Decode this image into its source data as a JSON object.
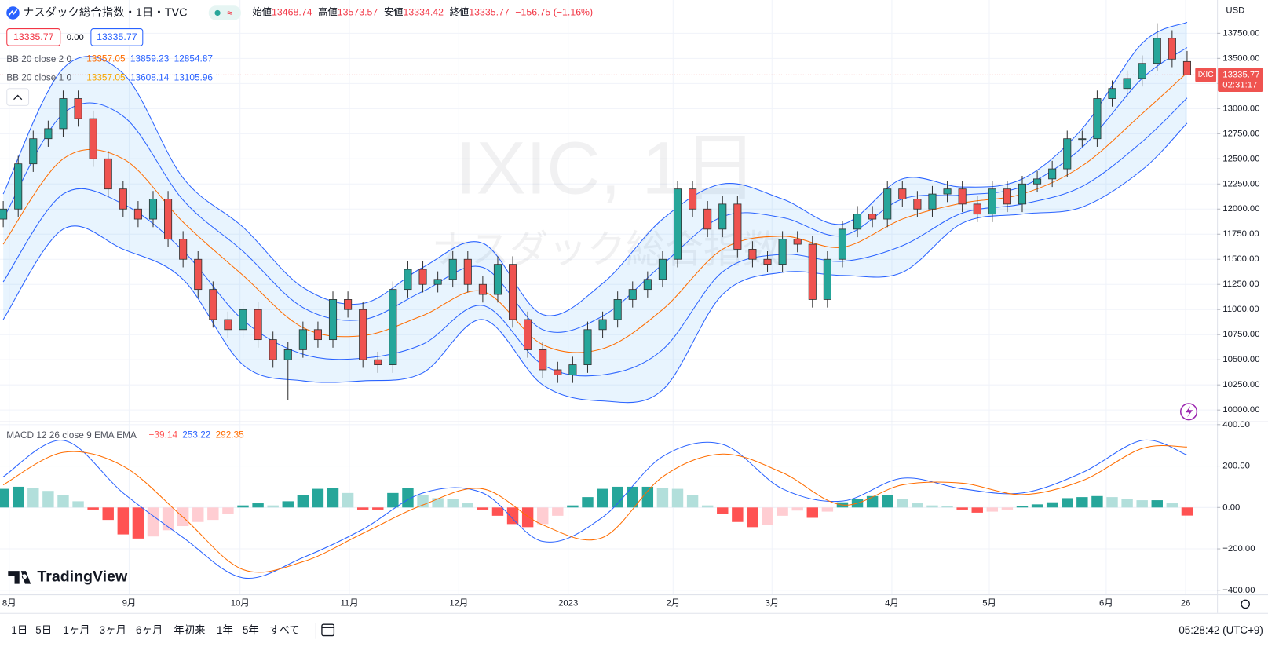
{
  "header": {
    "symbol": "ナスダック総合指数・1日・TVC",
    "badge": "≈",
    "ohlc": [
      {
        "label": "始値",
        "value": "13468.74"
      },
      {
        "label": "高値",
        "value": "13573.57"
      },
      {
        "label": "安値",
        "value": "13334.42"
      },
      {
        "label": "終値",
        "value": "13335.77"
      }
    ],
    "change": "−156.75 (−1.16%)",
    "quote_boxes": [
      "13335.77",
      "0.00",
      "13335.77"
    ]
  },
  "watermark": {
    "title": "IXIC, 1日",
    "subtitle": "ナスダック総合指数"
  },
  "logo": "TradingView",
  "currency": "USD",
  "toolbar": {
    "ranges": [
      "1日",
      "5日",
      "1ヶ月",
      "3ヶ月",
      "6ヶ月",
      "年初来",
      "1年",
      "5年",
      "すべて"
    ],
    "clock": "05:28:42 (UTC+9)"
  },
  "chart_data": [
    {
      "type": "candlestick",
      "x": [
        0,
        1,
        2,
        3,
        4,
        5,
        6,
        7,
        8,
        9,
        10,
        11,
        12,
        13,
        14,
        15,
        16,
        17,
        18,
        19,
        20,
        21,
        22,
        23,
        24,
        25,
        26,
        27,
        28,
        29,
        30,
        31,
        32,
        33,
        34,
        35,
        36,
        37,
        38,
        39,
        40,
        41,
        42,
        43,
        44,
        45,
        46,
        47,
        48,
        49,
        50,
        51,
        52,
        53,
        54,
        55,
        56,
        57,
        58,
        59,
        60,
        61,
        62,
        63,
        64,
        65,
        66,
        67,
        68,
        69,
        70,
        71,
        72,
        73,
        74,
        75,
        76,
        77,
        78,
        79
      ],
      "open": [
        11900,
        12000,
        12450,
        12700,
        12800,
        13100,
        12900,
        12500,
        12200,
        12000,
        11900,
        12100,
        11700,
        11500,
        11200,
        10900,
        10800,
        11000,
        10700,
        10500,
        10600,
        10800,
        10700,
        11100,
        11000,
        10500,
        10450,
        11200,
        11400,
        11250,
        11300,
        11500,
        11250,
        11150,
        11450,
        10900,
        10600,
        10400,
        10350,
        10450,
        10800,
        10900,
        11100,
        11200,
        11300,
        11500,
        12200,
        12000,
        11800,
        12050,
        11600,
        11500,
        11450,
        11700,
        11650,
        11100,
        11500,
        11800,
        11950,
        11900,
        12200,
        12100,
        12000,
        12150,
        12200,
        12050,
        11950,
        12200,
        12050,
        12250,
        12300,
        12400,
        12700,
        12700,
        13100,
        13200,
        13300,
        13450,
        13700,
        13468.74
      ],
      "high": [
        12080,
        12530,
        12780,
        12880,
        13180,
        13180,
        12980,
        12580,
        12280,
        12080,
        12180,
        12180,
        11780,
        11580,
        11280,
        10980,
        11080,
        11080,
        10780,
        10680,
        10880,
        10880,
        11180,
        11180,
        11080,
        10580,
        11280,
        11480,
        11480,
        11380,
        11580,
        11580,
        11330,
        11530,
        11530,
        10980,
        10680,
        10480,
        10530,
        10880,
        10980,
        11180,
        11280,
        11380,
        11580,
        12280,
        12280,
        12080,
        12130,
        12130,
        11680,
        11580,
        11780,
        11780,
        11730,
        11580,
        11880,
        12030,
        12030,
        12280,
        12280,
        12180,
        12230,
        12280,
        12280,
        12130,
        12280,
        12280,
        12330,
        12380,
        12480,
        12780,
        12780,
        13180,
        13280,
        13380,
        13530,
        13850,
        13780,
        13573.57
      ],
      "low": [
        11820,
        11920,
        12370,
        12620,
        12720,
        12820,
        12420,
        12120,
        11920,
        11820,
        11820,
        11620,
        11420,
        11120,
        10820,
        10720,
        10720,
        10620,
        10420,
        10100,
        10520,
        10620,
        10620,
        10920,
        10420,
        10370,
        10370,
        11120,
        11170,
        11170,
        11220,
        11170,
        11070,
        11070,
        10820,
        10520,
        10320,
        10270,
        10270,
        10370,
        10720,
        10820,
        11020,
        11120,
        11220,
        11420,
        11920,
        11720,
        11720,
        11520,
        11420,
        11370,
        11370,
        11570,
        11020,
        11020,
        11420,
        11720,
        11820,
        11820,
        12020,
        11920,
        11920,
        12070,
        11970,
        11870,
        11870,
        11970,
        11970,
        12170,
        12220,
        12320,
        12620,
        12620,
        13020,
        13120,
        13220,
        13370,
        13412.52,
        13334.42
      ],
      "close": [
        12000,
        12450,
        12700,
        12800,
        13100,
        12900,
        12500,
        12200,
        12000,
        11900,
        12100,
        11700,
        11500,
        11200,
        10900,
        10800,
        11000,
        10700,
        10500,
        10600,
        10800,
        10700,
        11100,
        11000,
        10500,
        10450,
        11200,
        11400,
        11250,
        11300,
        11500,
        11250,
        11150,
        11450,
        10900,
        10600,
        10400,
        10350,
        10450,
        10800,
        10900,
        11100,
        11200,
        11300,
        11500,
        12200,
        12000,
        11800,
        12050,
        11600,
        11500,
        11450,
        11700,
        11650,
        11100,
        11500,
        11800,
        11950,
        11900,
        12200,
        12100,
        12000,
        12150,
        12200,
        12050,
        11950,
        12200,
        12050,
        12250,
        12300,
        12400,
        12700,
        12700,
        13100,
        13200,
        13300,
        13450,
        13700,
        13492.52,
        13335.77
      ],
      "band_x": [
        0,
        4,
        8,
        12,
        16,
        20,
        24,
        28,
        32,
        36,
        40,
        44,
        48,
        52,
        56,
        60,
        64,
        68,
        72,
        76,
        79
      ],
      "indicators": [
        {
          "label": "BB 20 close 2 0",
          "basis_color": "#ff6d00",
          "basis": [
            11650,
            12500,
            12500,
            11870,
            11340,
            10820,
            10740,
            10940,
            11180,
            10650,
            10610,
            11000,
            11600,
            11730,
            11620,
            11900,
            12060,
            12150,
            12430,
            12950,
            13357.05
          ],
          "upper": [
            12150,
            13400,
            13350,
            12310,
            11820,
            11220,
            11060,
            11420,
            11660,
            10950,
            11260,
            11900,
            12250,
            12100,
            11850,
            12300,
            12220,
            12300,
            12800,
            13650,
            13859.23
          ],
          "lower": [
            10900,
            11800,
            11600,
            11300,
            10450,
            10290,
            10290,
            10370,
            10900,
            10250,
            10090,
            10200,
            11150,
            11370,
            11340,
            11370,
            11860,
            11950,
            12020,
            12390,
            12854.87
          ],
          "last": [
            13357.05,
            13859.23,
            12854.87
          ]
        },
        {
          "label": "BB 20 close 1 0",
          "basis_color": "#f7a600",
          "upper": [
            11900,
            12950,
            12925,
            12090,
            11580,
            11020,
            10900,
            11180,
            11420,
            10800,
            10935,
            11450,
            11925,
            11915,
            11735,
            12100,
            12140,
            12225,
            12615,
            13300,
            13608.14
          ],
          "lower": [
            11275,
            12150,
            12050,
            11585,
            10895,
            10555,
            10515,
            10655,
            11040,
            10450,
            10350,
            10600,
            11375,
            11550,
            11480,
            11635,
            11960,
            12050,
            12225,
            12670,
            13105.96
          ],
          "last": [
            13357.05,
            13608.14,
            13105.96
          ]
        }
      ],
      "colors": {
        "up": "#26a69a",
        "down": "#ef5350",
        "band": "#2962ff",
        "fill": "#2196f3"
      },
      "last_price": {
        "name": "IXIC",
        "value": 13335.77,
        "countdown": "02:31:17",
        "color": "#ef5350"
      },
      "xlim": [
        -0.216,
        81.0
      ],
      "xticks": [
        {
          "value": 0.4,
          "label": "8月"
        },
        {
          "value": 8.4,
          "label": "9月"
        },
        {
          "value": 15.8,
          "label": "10月"
        },
        {
          "value": 23.1,
          "label": "11月"
        },
        {
          "value": 30.4,
          "label": "12月"
        },
        {
          "value": 37.7,
          "label": "2023"
        },
        {
          "value": 44.7,
          "label": "2月"
        },
        {
          "value": 51.3,
          "label": "3月"
        },
        {
          "value": 59.3,
          "label": "4月"
        },
        {
          "value": 65.8,
          "label": "5月"
        },
        {
          "value": 73.6,
          "label": "6月"
        },
        {
          "value": 78.9,
          "label": "26"
        }
      ],
      "ylim": [
        9887,
        14081
      ],
      "yticks": [
        {
          "value": 10000,
          "label": "10000.00"
        },
        {
          "value": 10250,
          "label": "10250.00"
        },
        {
          "value": 10500,
          "label": "10500.00"
        },
        {
          "value": 10750,
          "label": "10750.00"
        },
        {
          "value": 11000,
          "label": "11000.00"
        },
        {
          "value": 11250,
          "label": "11250.00"
        },
        {
          "value": 11500,
          "label": "11500.00"
        },
        {
          "value": 11750,
          "label": "11750.00"
        },
        {
          "value": 12000,
          "label": "12000.00"
        },
        {
          "value": 12250,
          "label": "12250.00"
        },
        {
          "value": 12500,
          "label": "12500.00"
        },
        {
          "value": 12750,
          "label": "12750.00"
        },
        {
          "value": 13000,
          "label": "13000.00"
        },
        {
          "value": 13250,
          "label": "13250.00"
        },
        {
          "value": 13500,
          "label": "13500.00"
        },
        {
          "value": 13750,
          "label": "13750.00"
        }
      ],
      "grid": true
    },
    {
      "type": "macd",
      "label": "MACD 12 26 close 9 EMA EMA",
      "legend_values": {
        "values": [
          -39.14,
          253.22,
          292.35
        ],
        "value_labels": [
          "−39.14",
          "253.22",
          "292.35"
        ],
        "colors": [
          "#ff5252",
          "#2962ff",
          "#ff6d00"
        ]
      },
      "x": [
        0,
        4,
        8,
        12,
        16,
        20,
        24,
        28,
        32,
        36,
        40,
        44,
        48,
        52,
        56,
        60,
        64,
        68,
        72,
        76,
        79
      ],
      "macd": [
        148,
        324,
        70,
        -145,
        -340,
        -242,
        -105,
        70,
        70,
        -164,
        -47,
        246,
        305,
        90,
        31,
        141,
        90,
        70,
        168,
        324,
        253.22
      ],
      "signal": [
        109,
        266,
        200,
        -47,
        -300,
        -262,
        -125,
        12,
        90,
        -84,
        -145,
        148,
        258,
        168,
        12,
        109,
        117,
        62,
        129,
        285,
        292.35
      ],
      "macd_color": "#2962ff",
      "signal_color": "#ff6d00",
      "histogram": {
        "x": [
          0,
          1,
          2,
          3,
          4,
          5,
          6,
          7,
          8,
          9,
          10,
          11,
          12,
          13,
          14,
          15,
          16,
          17,
          18,
          19,
          20,
          21,
          22,
          23,
          24,
          25,
          26,
          27,
          28,
          29,
          30,
          31,
          32,
          33,
          34,
          35,
          36,
          37,
          38,
          39,
          40,
          41,
          42,
          43,
          44,
          45,
          46,
          47,
          48,
          49,
          50,
          51,
          52,
          53,
          54,
          55,
          56,
          57,
          58,
          59,
          60,
          61,
          62,
          63,
          64,
          65,
          66,
          67,
          68,
          69,
          70,
          71,
          72,
          73,
          74,
          75,
          76,
          77,
          78,
          79
        ],
        "values": [
          90,
          100,
          95,
          80,
          60,
          30,
          -10,
          -60,
          -130,
          -150,
          -140,
          -110,
          -90,
          -70,
          -60,
          -30,
          10,
          20,
          10,
          30,
          60,
          90,
          95,
          70,
          -10,
          -10,
          70,
          95,
          60,
          45,
          40,
          20,
          -10,
          -40,
          -80,
          -95,
          -80,
          -40,
          10,
          50,
          90,
          100,
          100,
          100,
          95,
          90,
          60,
          10,
          -30,
          -70,
          -95,
          -85,
          -40,
          -15,
          -50,
          -20,
          25,
          40,
          55,
          60,
          40,
          20,
          10,
          5,
          -10,
          -25,
          -20,
          -10,
          5,
          15,
          25,
          45,
          50,
          55,
          50,
          40,
          35,
          35,
          20,
          -39.14
        ],
        "colors": {
          "grow_up": "#26a69a",
          "fall_up": "#b2dfdb",
          "grow_down": "#ff5252",
          "fall_down": "#ffcdd2"
        }
      },
      "xlim": [
        -0.216,
        81.0
      ],
      "ylim": [
        -420,
        412
      ],
      "yticks": [
        {
          "value": 400,
          "label": "400.00"
        },
        {
          "value": 200,
          "label": "200.00"
        },
        {
          "value": 0,
          "label": "0.00"
        },
        {
          "value": -200,
          "label": "−200.00"
        },
        {
          "value": -400,
          "label": "−400.00"
        }
      ],
      "grid": true
    }
  ]
}
